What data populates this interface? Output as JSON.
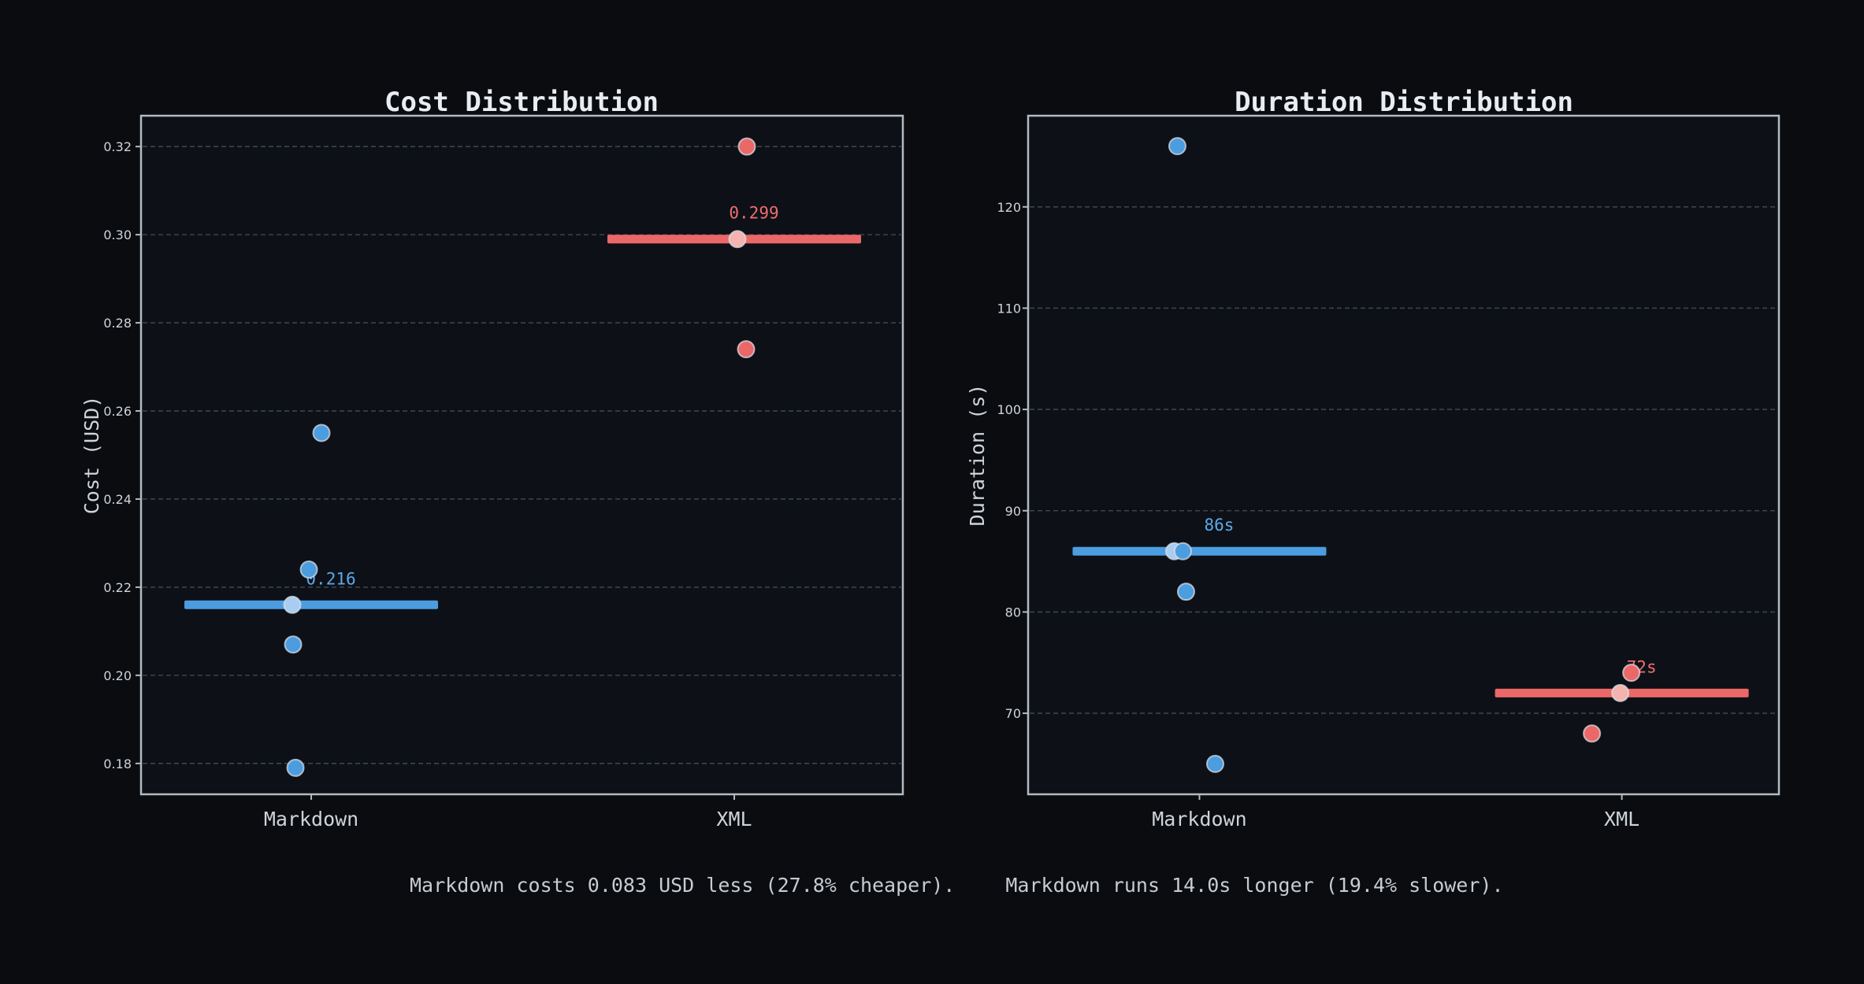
{
  "theme": {
    "figure_bg": "#0a0c10",
    "axes_bg": "#0d1117",
    "spine_color": "#b4bac2",
    "grid_color": "#3c434b",
    "tick_label_color": "#ced4da",
    "title_color": "#e9edf2",
    "annotation_color": "#c6ccd2"
  },
  "chart_data": [
    {
      "type": "scatter",
      "title": "Cost Distribution",
      "ylabel": "Cost (USD)",
      "categories": [
        "Markdown",
        "XML"
      ],
      "ylim": [
        0.173,
        0.327
      ],
      "grid": true,
      "yticks": [
        {
          "value": 0.18,
          "label": "0.18"
        },
        {
          "value": 0.2,
          "label": "0.20"
        },
        {
          "value": 0.22,
          "label": "0.22"
        },
        {
          "value": 0.24,
          "label": "0.24"
        },
        {
          "value": 0.26,
          "label": "0.26"
        },
        {
          "value": 0.28,
          "label": "0.28"
        },
        {
          "value": 0.3,
          "label": "0.30"
        },
        {
          "value": 0.32,
          "label": "0.32"
        }
      ],
      "series": [
        {
          "name": "Markdown",
          "color": "#4c9de0",
          "label_color": "#5da9e8",
          "median_point_color": "#a9cdf0",
          "median": 0.216,
          "median_label": "0.216",
          "median_index": 2,
          "points": [
            {
              "v": 0.255,
              "dx": 13
            },
            {
              "v": 0.224,
              "dx": -3
            },
            {
              "v": 0.216,
              "dx": -24
            },
            {
              "v": 0.207,
              "dx": -23
            },
            {
              "v": 0.179,
              "dx": -20
            }
          ]
        },
        {
          "name": "XML",
          "color": "#ea6868",
          "label_color": "#ef6e6e",
          "median_point_color": "#f3b3af",
          "median": 0.299,
          "median_label": "0.299",
          "median_index": 1,
          "points": [
            {
              "v": 0.32,
              "dx": 16
            },
            {
              "v": 0.299,
              "dx": 4
            },
            {
              "v": 0.274,
              "dx": 15
            }
          ]
        }
      ]
    },
    {
      "type": "scatter",
      "title": "Duration Distribution",
      "ylabel": "Duration (s)",
      "categories": [
        "Markdown",
        "XML"
      ],
      "ylim": [
        62,
        129
      ],
      "grid": true,
      "yticks": [
        {
          "value": 70,
          "label": "70"
        },
        {
          "value": 80,
          "label": "80"
        },
        {
          "value": 90,
          "label": "90"
        },
        {
          "value": 100,
          "label": "100"
        },
        {
          "value": 110,
          "label": "110"
        },
        {
          "value": 120,
          "label": "120"
        }
      ],
      "series": [
        {
          "name": "Markdown",
          "color": "#4c9de0",
          "label_color": "#5da9e8",
          "median_point_color": "#a9cdf0",
          "median": 86,
          "median_label": "86s",
          "median_index": 1,
          "points": [
            {
              "v": 126,
              "dx": -28
            },
            {
              "v": 86,
              "dx": -32
            },
            {
              "v": 86,
              "dx": -21
            },
            {
              "v": 82,
              "dx": -17
            },
            {
              "v": 65,
              "dx": 20
            }
          ]
        },
        {
          "name": "XML",
          "color": "#ea6868",
          "label_color": "#ef6e6e",
          "median_point_color": "#f3b3af",
          "median": 72,
          "median_label": "72s",
          "median_index": 1,
          "points": [
            {
              "v": 74,
              "dx": 12
            },
            {
              "v": 72,
              "dx": -2
            },
            {
              "v": 68,
              "dx": -38
            }
          ]
        }
      ]
    }
  ],
  "annotations": {
    "cost": "Markdown costs 0.083 USD less (27.8% cheaper).",
    "duration": "Markdown runs 14.0s longer (19.4% slower)."
  }
}
